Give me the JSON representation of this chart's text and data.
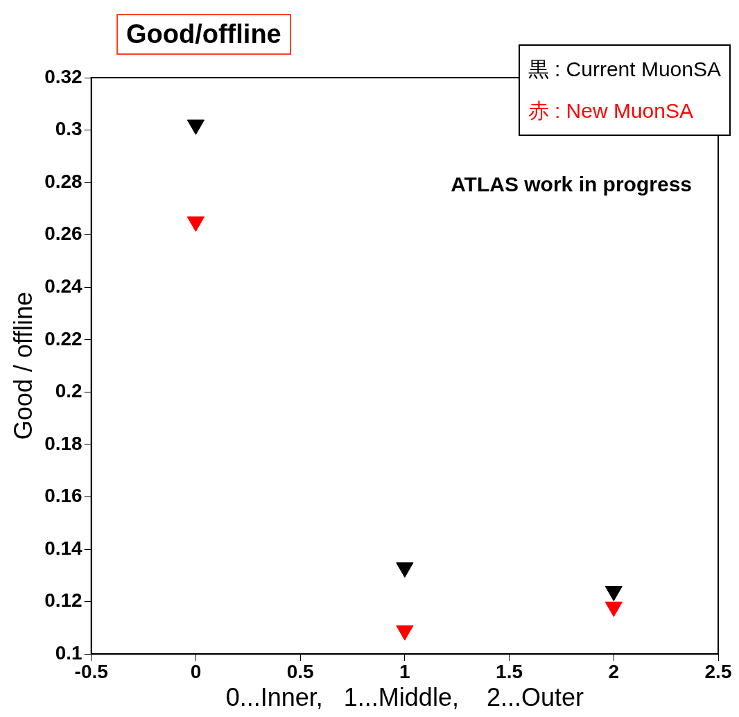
{
  "chart_data": {
    "type": "scatter",
    "title": "Good/offline",
    "ylabel": "Good / offline",
    "xlabel": "0...Inner,   1...Middle,    2...Outer",
    "x": [
      0,
      1,
      2
    ],
    "series": [
      {
        "name": "黒 : Current MuonSA",
        "color": "#000000",
        "values": [
          0.302,
          0.133,
          0.124
        ]
      },
      {
        "name": "赤 : New MuonSA",
        "color": "#ff0000",
        "values": [
          0.265,
          0.109,
          0.118
        ]
      }
    ],
    "xlim": [
      -0.5,
      2.5
    ],
    "xticks": [
      -0.5,
      0,
      0.5,
      1,
      1.5,
      2,
      2.5
    ],
    "ylim": [
      0.1,
      0.32
    ],
    "yticks": [
      0.1,
      0.12,
      0.14,
      0.16,
      0.18,
      0.2,
      0.22,
      0.24,
      0.26,
      0.28,
      0.3,
      0.32
    ],
    "annotations": [
      "ATLAS work in progress"
    ],
    "legend": "top right",
    "grid": false,
    "marker": "triangle"
  }
}
